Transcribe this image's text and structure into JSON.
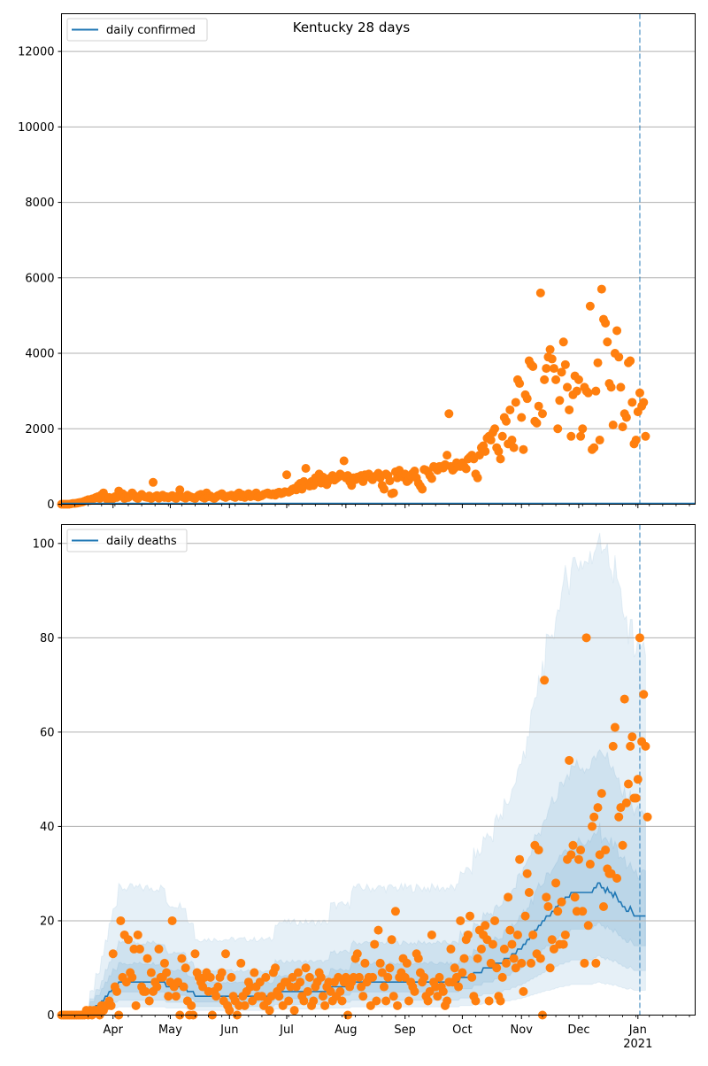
{
  "colors": {
    "observed": "#ff7f0e",
    "model": "#1f77b4",
    "band": "#1f77b4",
    "grid": "#b0b0b0",
    "marker_line": "#1f77b4"
  },
  "chart_data": [
    {
      "type": "scatter",
      "title": "Kentucky 28 days",
      "legend": {
        "label": "daily confirmed",
        "placement": "top-left"
      },
      "ylim": [
        0,
        13000
      ],
      "yticks": [
        0,
        2000,
        4000,
        6000,
        8000,
        10000,
        12000
      ],
      "ytick_labels": [
        "0",
        "2000",
        "4000",
        "6000",
        "8000",
        "10000",
        "12000"
      ],
      "grid": "y",
      "xlim_days_from_2020_03_05": [
        0,
        332
      ],
      "forecast_marker_day": 303,
      "series": [
        {
          "name": "daily confirmed (observed)",
          "kind": "points",
          "values_by_month": {
            "Mar": [
              0,
              0,
              0,
              0,
              0,
              10,
              20,
              20,
              30,
              40,
              50,
              60,
              80,
              100,
              120,
              100,
              140,
              150,
              180,
              200,
              150,
              250,
              300,
              200,
              120,
              180,
              100
            ],
            "Apr": [
              150,
              200,
              180,
              350,
              250,
              280,
              150,
              220,
              180,
              230,
              300,
              240,
              180,
              150,
              200,
              260,
              210,
              190,
              180,
              220,
              150,
              580,
              200,
              230,
              160,
              190,
              240,
              180,
              200,
              170
            ],
            "May": [
              200,
              230,
              180,
              150,
              220,
              380,
              200,
              180,
              160,
              240,
              210,
              190,
              170,
              150,
              200,
              240,
              260,
              180,
              160,
              300,
              200,
              220,
              180,
              150,
              190,
              230,
              250,
              280,
              200,
              180,
              210
            ],
            "Jun": [
              220,
              240,
              200,
              180,
              260,
              300,
              200,
              250,
              180,
              230,
              280,
              200,
              240,
              220,
              300,
              190,
              210,
              230,
              260,
              280,
              300,
              260,
              250,
              280,
              240,
              300,
              320,
              280,
              300,
              330
            ],
            "Jul": [
              780,
              320,
              350,
              400,
              420,
              380,
              500,
              550,
              400,
              600,
              950,
              520,
              480,
              600,
              500,
              700,
              640,
              800,
              560,
              720,
              680,
              520,
              620,
              700,
              760,
              640,
              680,
              720,
              800,
              760,
              1150
            ],
            "Aug": [
              700,
              760,
              600,
              500,
              700,
              650,
              720,
              680,
              760,
              600,
              780,
              740,
              800,
              700,
              650,
              720,
              760,
              820,
              700,
              500,
              400,
              800,
              760,
              620,
              280,
              300,
              860,
              700,
              900,
              780,
              720
            ],
            "Sep": [
              800,
              600,
              640,
              760,
              820,
              880,
              700,
              560,
              480,
              400,
              920,
              900,
              860,
              760,
              680,
              1000,
              960,
              900,
              1000,
              1000,
              960,
              1050,
              1300,
              2400,
              1000,
              900,
              960,
              1100,
              1050,
              1000
            ],
            "Oct": [
              1100,
              1000,
              940,
              1200,
              1250,
              1300,
              1200,
              800,
              700,
              1300,
              1500,
              1550,
              1400,
              1750,
              1800,
              1700,
              1900,
              2000,
              1500,
              1400,
              1200,
              1800,
              2300,
              2200,
              1600,
              2500,
              1700,
              1500,
              2700,
              3300,
              3200
            ],
            "Nov": [
              2300,
              1450,
              2900,
              2800,
              3800,
              3700,
              3650,
              2200,
              2150,
              2600,
              5600,
              2400,
              3300,
              3600,
              3900,
              4100,
              3850,
              3600,
              3300,
              2000,
              2750,
              3500,
              4300,
              3700,
              3100,
              2500,
              1800,
              2900,
              3400,
              3000
            ],
            "Dec": [
              3300,
              1800,
              2000,
              3100,
              3000,
              2950,
              5250,
              1450,
              1500,
              3000,
              3750,
              1700,
              5700,
              4900,
              4800,
              4300,
              3200,
              3100,
              2100,
              4000,
              4600,
              3900,
              3100,
              2050,
              2400,
              2300,
              3750,
              3800,
              2700,
              1600,
              1700
            ],
            "Jan": [
              2450,
              2950,
              2600,
              2700,
              1800
            ]
          }
        },
        {
          "name": "daily confirmed (model)",
          "kind": "line",
          "value": 0
        }
      ],
      "x_tick_labels": [
        "Apr",
        "May",
        "Jun",
        "Jul",
        "Aug",
        "Sep",
        "Oct",
        "Nov",
        "Dec",
        "Jan\n2021"
      ]
    },
    {
      "type": "line",
      "title": "",
      "legend": {
        "label": "daily deaths",
        "placement": "top-left"
      },
      "ylim": [
        0,
        104
      ],
      "yticks": [
        0,
        20,
        40,
        60,
        80,
        100
      ],
      "ytick_labels": [
        "0",
        "20",
        "40",
        "60",
        "80",
        "100"
      ],
      "grid": "y",
      "xlim_days_from_2020_03_05": [
        0,
        332
      ],
      "forecast_marker_day": 303,
      "model_median_by_month": {
        "Mar": [
          0,
          0,
          0,
          0,
          0,
          0,
          0,
          0,
          0,
          0,
          0,
          0,
          0,
          0,
          0,
          1,
          1,
          1,
          2,
          2,
          2,
          3,
          3,
          4,
          4,
          5,
          5
        ],
        "Apr": [
          6,
          6,
          6,
          7,
          7,
          7,
          7,
          7,
          7,
          7,
          7,
          7,
          7,
          7,
          7,
          7,
          7,
          7,
          7,
          7,
          7,
          7,
          7,
          7,
          7,
          7,
          7,
          7,
          6,
          6
        ],
        "May": [
          6,
          6,
          6,
          6,
          6,
          6,
          6,
          6,
          6,
          5,
          5,
          5,
          5,
          4,
          4,
          4,
          4,
          4,
          4,
          4,
          4,
          4,
          4,
          4,
          4,
          4,
          4,
          4,
          4,
          4,
          4
        ],
        "Jun": [
          4,
          4,
          4,
          4,
          4,
          4,
          4,
          4,
          4,
          4,
          4,
          4,
          4,
          4,
          4,
          4,
          4,
          4,
          4,
          4,
          4,
          4,
          4,
          4,
          5,
          5,
          5,
          5,
          5,
          5
        ],
        "Jul": [
          5,
          5,
          5,
          5,
          5,
          5,
          5,
          5,
          5,
          5,
          5,
          5,
          5,
          5,
          5,
          5,
          5,
          5,
          5,
          5,
          5,
          5,
          5,
          6,
          6,
          6,
          6,
          6,
          6,
          6,
          6
        ],
        "Aug": [
          6,
          6,
          6,
          7,
          7,
          7,
          7,
          7,
          7,
          7,
          7,
          7,
          7,
          7,
          7,
          7,
          7,
          7,
          7,
          7,
          7,
          7,
          7,
          7,
          7,
          7,
          7,
          7,
          7,
          7,
          7
        ],
        "Sep": [
          7,
          7,
          7,
          7,
          7,
          7,
          7,
          7,
          7,
          7,
          7,
          7,
          7,
          7,
          7,
          7,
          7,
          7,
          7,
          7,
          7,
          7,
          7,
          7,
          7,
          7,
          7,
          7,
          7,
          8
        ],
        "Oct": [
          8,
          8,
          8,
          8,
          8,
          8,
          9,
          9,
          9,
          9,
          9,
          10,
          10,
          10,
          10,
          10,
          10,
          11,
          11,
          11,
          11,
          11,
          12,
          12,
          12,
          12,
          13,
          13,
          13,
          14,
          14
        ],
        "Nov": [
          14,
          15,
          15,
          16,
          16,
          17,
          17,
          18,
          18,
          19,
          19,
          20,
          20,
          21,
          21,
          21,
          22,
          22,
          23,
          23,
          24,
          24,
          24,
          25,
          25,
          25,
          26,
          26,
          26,
          26
        ],
        "Dec": [
          26,
          26,
          26,
          26,
          26,
          26,
          26,
          26,
          27,
          27,
          28,
          28,
          27,
          27,
          26,
          27,
          26,
          26,
          25,
          26,
          25,
          24,
          24,
          23,
          23,
          22,
          22,
          23,
          22,
          21,
          21
        ],
        "Jan": [
          21,
          21,
          21,
          21,
          21
        ]
      },
      "bands": [
        {
          "name": "inner band",
          "lower_factor": 0.7,
          "upper_factor": 1.3
        },
        {
          "name": "middle band",
          "lower_factor": 0.45,
          "upper_factor": 1.9
        },
        {
          "name": "outer band",
          "lower_factor": 0.25,
          "upper_factor": 3.5
        }
      ],
      "observed_by_month": {
        "Mar": [
          0,
          0,
          0,
          0,
          0,
          0,
          0,
          0,
          0,
          0,
          0,
          0,
          0,
          1,
          0,
          1,
          0,
          1,
          1,
          1,
          0,
          2,
          1,
          2,
          2,
          3,
          2
        ],
        "Apr": [
          13,
          6,
          5,
          0,
          20,
          8,
          17,
          7,
          16,
          9,
          8,
          14,
          2,
          17,
          14,
          6,
          5,
          5,
          12,
          3,
          9,
          5,
          7,
          6,
          14,
          8,
          8,
          11,
          9,
          4
        ],
        "May": [
          7,
          20,
          6,
          4,
          7,
          0,
          12,
          6,
          10,
          3,
          0,
          2,
          0,
          13,
          9,
          8,
          7,
          6,
          8,
          9,
          5,
          8,
          0,
          5,
          4,
          6,
          8,
          9,
          3,
          13,
          2
        ],
        "Jun": [
          1,
          8,
          4,
          3,
          0,
          2,
          11,
          4,
          2,
          5,
          7,
          6,
          3,
          9,
          6,
          4,
          7,
          4,
          2,
          8,
          3,
          1,
          4,
          9,
          10,
          5,
          4,
          6,
          2,
          7
        ],
        "Jul": [
          7,
          3,
          6,
          8,
          1,
          6,
          9,
          7,
          4,
          3,
          10,
          5,
          8,
          2,
          3,
          6,
          7,
          9,
          8,
          4,
          2,
          6,
          7,
          5,
          3,
          7,
          4,
          8,
          5,
          3,
          7
        ],
        "Aug": [
          8,
          0,
          6,
          7,
          8,
          12,
          13,
          8,
          6,
          4,
          11,
          7,
          8,
          2,
          8,
          15,
          3,
          18,
          11,
          9,
          6,
          3,
          8,
          10,
          16,
          4,
          22,
          2,
          8,
          9,
          12
        ],
        "Sep": [
          8,
          11,
          3,
          7,
          6,
          5,
          13,
          12,
          9,
          7,
          8,
          4,
          3,
          5,
          17,
          7,
          6,
          4,
          8,
          6,
          5,
          2,
          3,
          7,
          14,
          7,
          10,
          8,
          6,
          20
        ],
        "Oct": [
          9,
          12,
          16,
          17,
          21,
          8,
          4,
          3,
          12,
          18,
          14,
          17,
          19,
          16,
          3,
          11,
          15,
          20,
          10,
          4,
          3,
          8,
          14,
          11,
          25,
          18,
          15,
          12,
          10,
          17,
          33
        ],
        "Nov": [
          11,
          5,
          21,
          30,
          26,
          11,
          17,
          36,
          13,
          35,
          12,
          0,
          71,
          25,
          23,
          10,
          16,
          14,
          28,
          22,
          15,
          24,
          15,
          17,
          33,
          54,
          34,
          36,
          25,
          22
        ],
        "Dec": [
          33,
          35,
          22,
          11,
          80,
          19,
          32,
          40,
          42,
          11,
          44,
          34,
          47,
          23,
          35,
          31,
          30,
          30,
          57,
          61,
          29,
          42,
          44,
          36,
          67,
          45,
          49,
          57,
          59,
          46,
          46
        ],
        "Jan": [
          50,
          80,
          58,
          68,
          57,
          42
        ]
      },
      "x_tick_labels": [
        "Apr",
        "May",
        "Jun",
        "Jul",
        "Aug",
        "Sep",
        "Oct",
        "Nov",
        "Dec",
        "Jan\n2021"
      ]
    }
  ],
  "axis": {
    "month_labels": [
      "Apr",
      "May",
      "Jun",
      "Jul",
      "Aug",
      "Sep",
      "Oct",
      "Nov",
      "Dec",
      "Jan"
    ],
    "year_label": "2021"
  },
  "top": {
    "title": "Kentucky 28 days",
    "legend_label": "daily confirmed",
    "ytick_labels": [
      "0",
      "2000",
      "4000",
      "6000",
      "8000",
      "10000",
      "12000"
    ]
  },
  "bottom": {
    "legend_label": "daily deaths",
    "ytick_labels": [
      "0",
      "20",
      "40",
      "60",
      "80",
      "100"
    ]
  }
}
